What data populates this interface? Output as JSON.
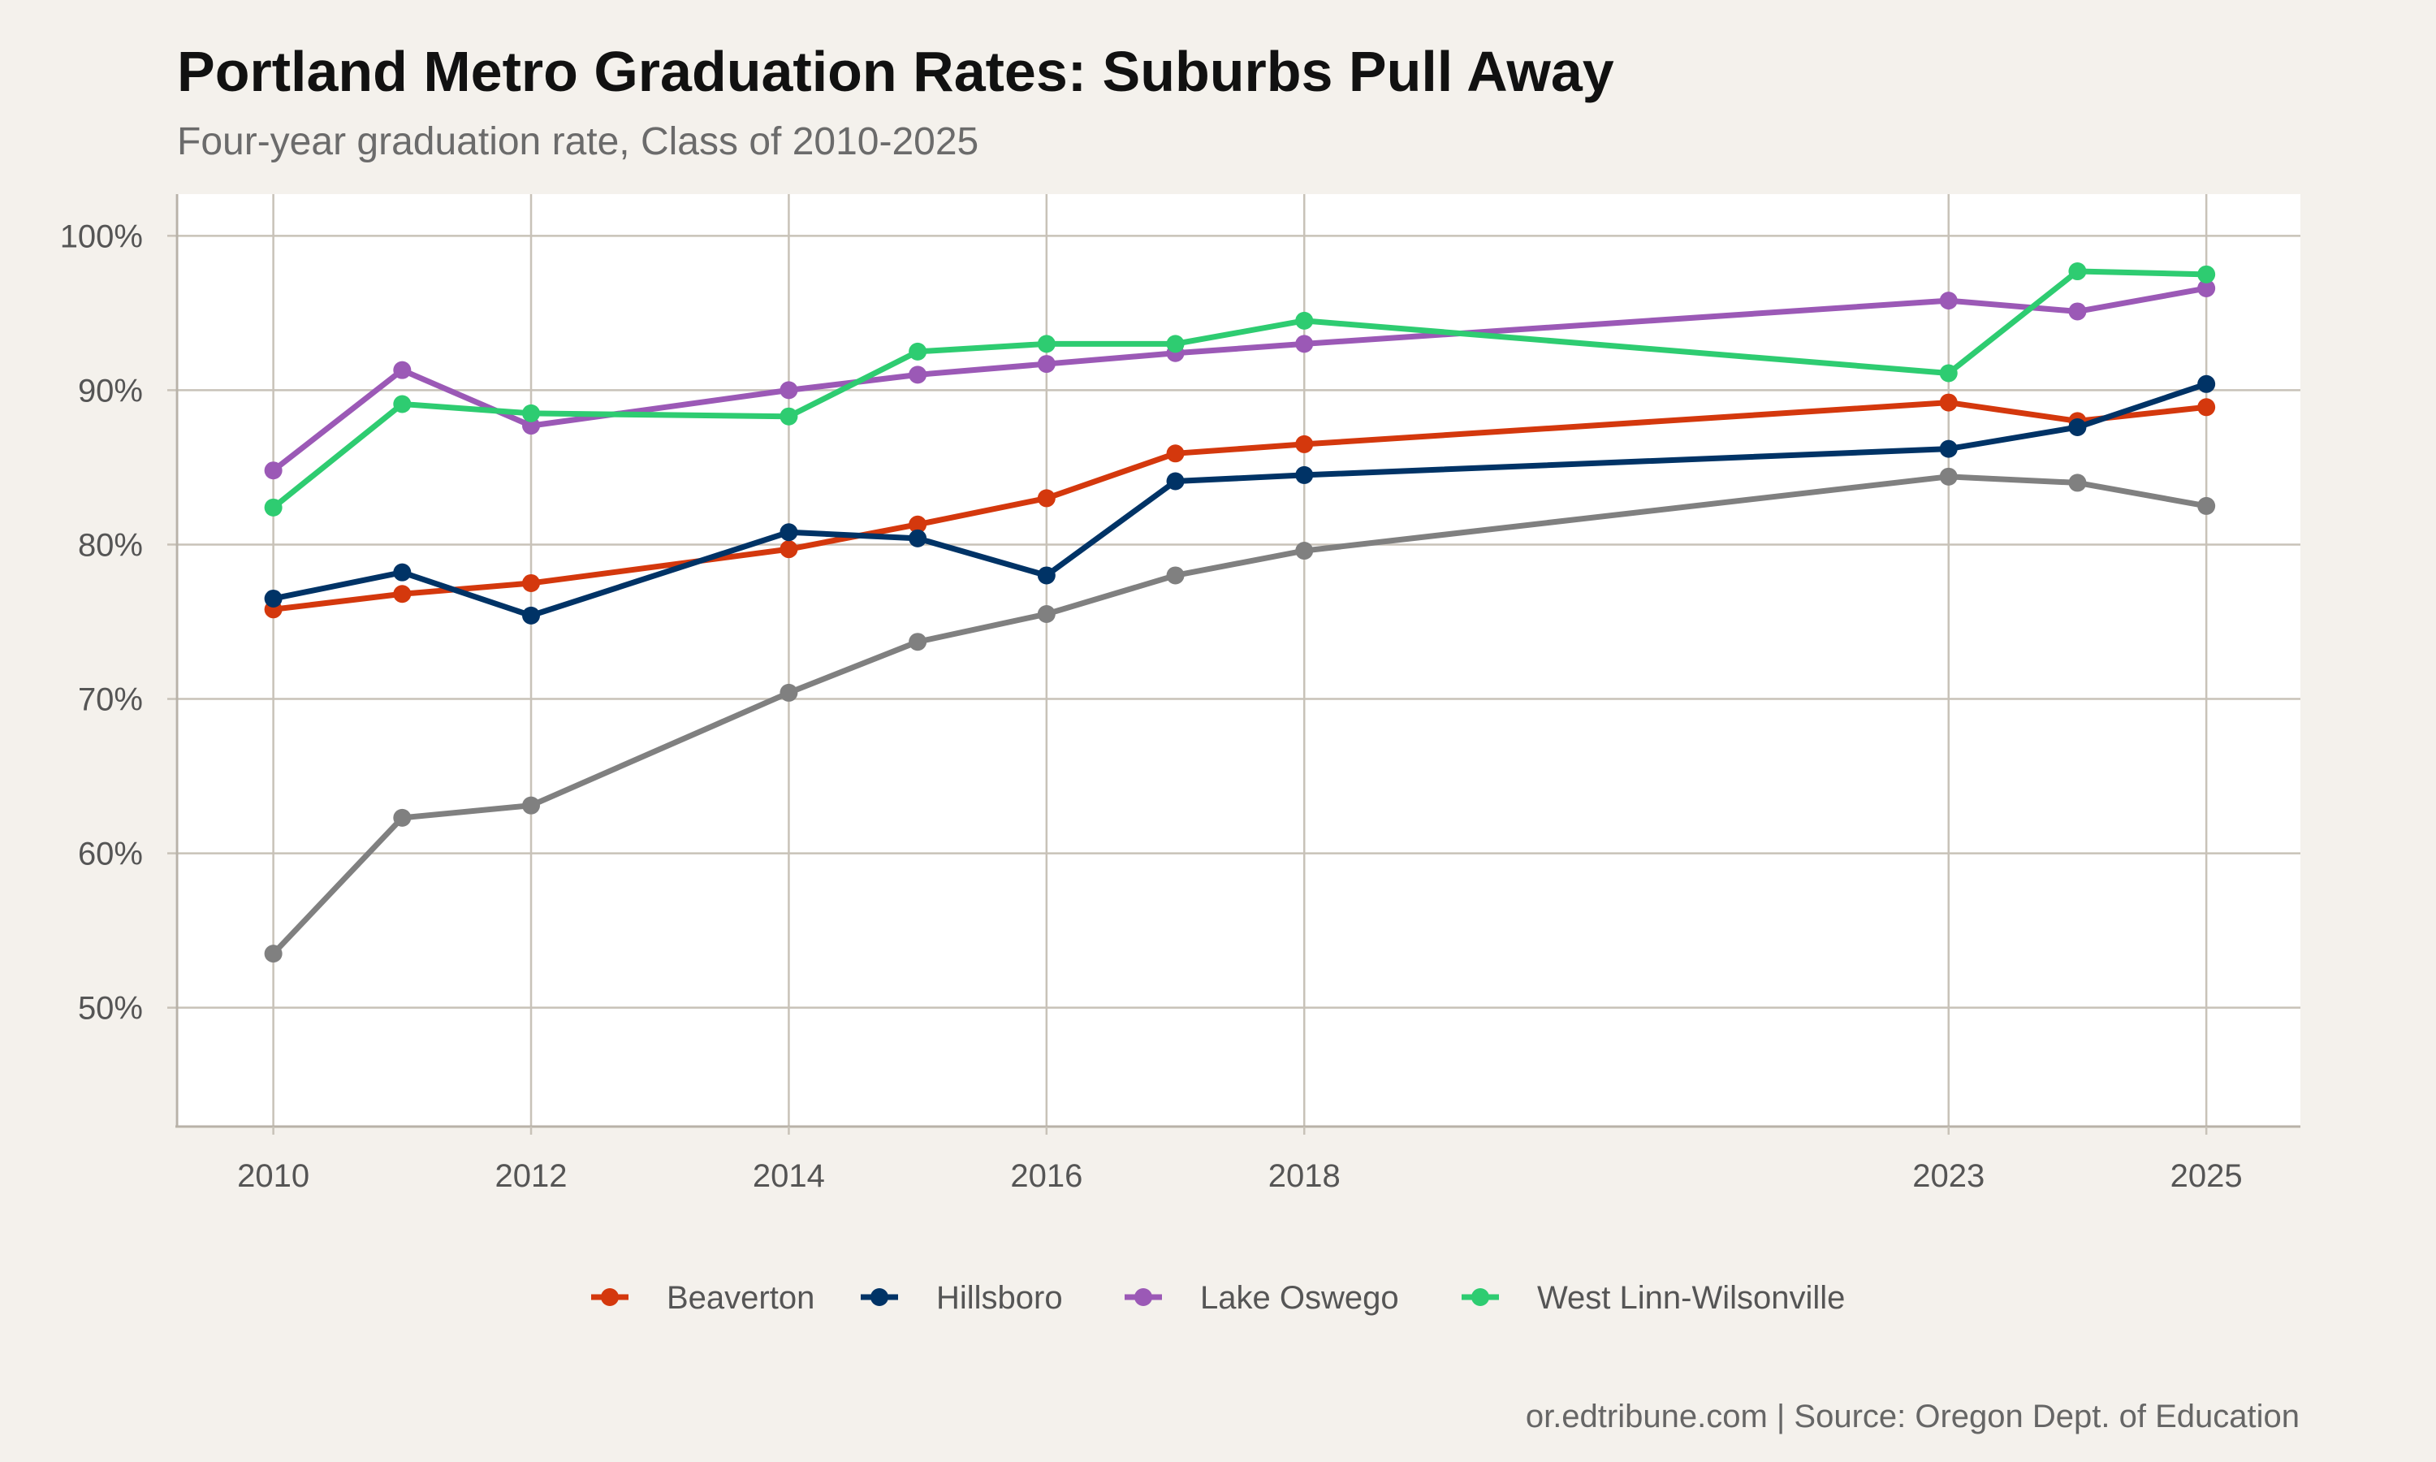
{
  "chart_data": {
    "type": "line",
    "title": "Portland Metro Graduation Rates: Suburbs Pull Away",
    "subtitle": "Four-year graduation rate, Class of 2010-2025",
    "caption": "or.edtribune.com | Source: Oregon Dept. of Education",
    "xlabel": "",
    "ylabel": "",
    "x": [
      2010,
      2011,
      2012,
      2014,
      2015,
      2016,
      2017,
      2018,
      2023,
      2024,
      2025
    ],
    "xticks": [
      2010,
      2012,
      2014,
      2016,
      2018,
      2023,
      2025
    ],
    "xtick_labels": [
      "2010",
      "2012",
      "2014",
      "2016",
      "2018",
      "2023",
      "2025"
    ],
    "yticks": [
      50,
      60,
      70,
      80,
      90,
      100
    ],
    "ytick_labels": [
      "50%",
      "60%",
      "70%",
      "80%",
      "90%",
      "100%"
    ],
    "xlim": [
      2009.24,
      2025.73
    ],
    "ylim": [
      42.3,
      102.7
    ],
    "grid": true,
    "legend_position": "bottom",
    "series": [
      {
        "name": "",
        "color": "#808080",
        "values": [
          53.5,
          62.3,
          63.1,
          70.4,
          73.7,
          75.5,
          78.0,
          79.6,
          84.4,
          84.0,
          82.5
        ]
      },
      {
        "name": "Beaverton",
        "color": "#d4380d",
        "values": [
          75.8,
          76.8,
          77.5,
          79.7,
          81.3,
          83.0,
          85.9,
          86.5,
          89.2,
          88.0,
          88.9
        ]
      },
      {
        "name": "Hillsboro",
        "color": "#003366",
        "values": [
          76.5,
          78.2,
          75.4,
          80.8,
          80.4,
          78.0,
          84.1,
          84.5,
          86.2,
          87.6,
          90.4
        ]
      },
      {
        "name": "Lake Oswego",
        "color": "#9b59b6",
        "values": [
          84.8,
          91.3,
          87.7,
          90.0,
          91.0,
          91.7,
          92.4,
          93.0,
          95.8,
          95.1,
          96.6
        ]
      },
      {
        "name": "West Linn-Wilsonville",
        "color": "#2ecc71",
        "values": [
          82.4,
          89.1,
          88.5,
          88.3,
          92.5,
          93.0,
          93.0,
          94.5,
          91.1,
          97.7,
          97.5
        ]
      }
    ],
    "legend": [
      "Beaverton",
      "Hillsboro",
      "Lake Oswego",
      "West Linn-Wilsonville"
    ]
  },
  "colors": {
    "background": "#f4f1ec",
    "panel": "#ffffff",
    "grid": "#c8c2b8"
  }
}
